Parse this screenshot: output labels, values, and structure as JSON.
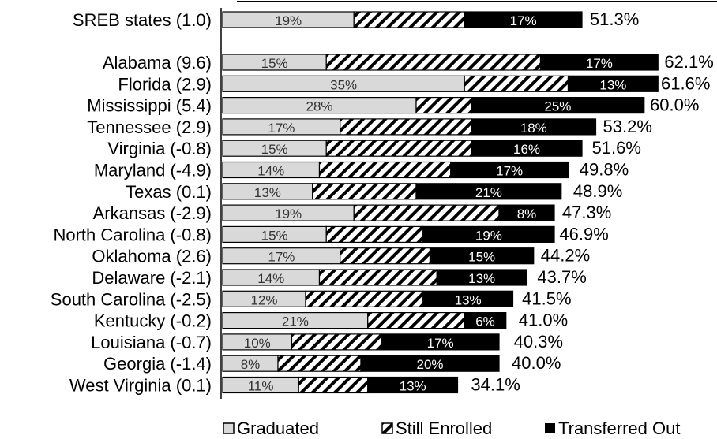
{
  "chart_data": {
    "type": "bar",
    "orientation": "horizontal",
    "stacked": true,
    "categories": [
      "SREB states (1.0)",
      "Alabama (9.6)",
      "Florida (2.9)",
      "Mississippi (5.4)",
      "Tennessee (2.9)",
      "Virginia (-0.8)",
      "Maryland (-4.9)",
      "Texas (0.1)",
      "Arkansas (-2.9)",
      "North Carolina (-0.8)",
      "Oklahoma (2.6)",
      "Delaware (-2.1)",
      "South Carolina (-2.5)",
      "Kentucky (-0.2)",
      "Louisiana (-0.7)",
      "Georgia (-1.4)",
      "West Virginia (0.1)"
    ],
    "series": [
      {
        "name": "Graduated",
        "pattern": "solid-light-gray",
        "color": "#d9d9d9",
        "values": [
          19,
          15,
          35,
          28,
          17,
          15,
          14,
          13,
          19,
          15,
          17,
          14,
          12,
          21,
          10,
          8,
          11
        ],
        "labels": [
          "19%",
          "15%",
          "35%",
          "28%",
          "17%",
          "15%",
          "14%",
          "13%",
          "19%",
          "15%",
          "17%",
          "14%",
          "12%",
          "21%",
          "10%",
          "8%",
          "11%"
        ]
      },
      {
        "name": "Still Enrolled",
        "pattern": "diagonal-hatch",
        "color": "#000000",
        "values": [
          16,
          31,
          15,
          8,
          19,
          21,
          19,
          15,
          21,
          14,
          13,
          17,
          17,
          14,
          13,
          12,
          10
        ]
      },
      {
        "name": "Transferred Out",
        "pattern": "solid-black",
        "color": "#000000",
        "values": [
          17,
          17,
          13,
          25,
          18,
          16,
          17,
          21,
          8,
          19,
          15,
          13,
          13,
          6,
          17,
          20,
          13
        ],
        "labels": [
          "17%",
          "17%",
          "13%",
          "25%",
          "18%",
          "16%",
          "17%",
          "21%",
          "8%",
          "19%",
          "15%",
          "13%",
          "13%",
          "6%",
          "17%",
          "20%",
          "13%"
        ]
      }
    ],
    "totals": [
      "51.3%",
      "62.1%",
      "61.6%",
      "60.0%",
      "53.2%",
      "51.6%",
      "49.8%",
      "48.9%",
      "47.3%",
      "46.9%",
      "44.2%",
      "43.7%",
      "41.5%",
      "41.0%",
      "40.3%",
      "40.0%",
      "34.1%"
    ],
    "total_values": [
      51.3,
      62.1,
      61.6,
      60.0,
      53.2,
      51.6,
      49.8,
      48.9,
      47.3,
      46.9,
      44.2,
      43.7,
      41.5,
      41.0,
      40.3,
      40.0,
      34.1
    ],
    "legend": {
      "position": "bottom",
      "entries": [
        "Graduated",
        "Still Enrolled",
        "Transferred Out"
      ]
    },
    "grid": false
  }
}
